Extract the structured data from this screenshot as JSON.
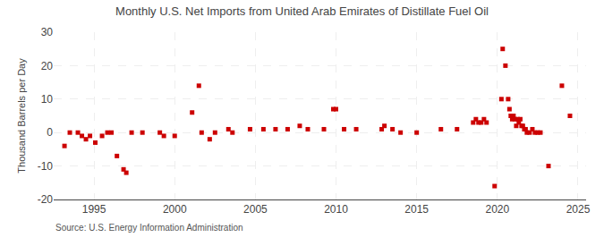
{
  "chart_data": {
    "type": "scatter",
    "title": "Monthly U.S. Net Imports from United Arab Emirates of Distillate Fuel Oil",
    "ylabel": "Thousand Barrels per Day",
    "annotations": [
      "Source: U.S. Energy Information Administration"
    ],
    "color": "#cc0000",
    "marker": "square",
    "grid": true,
    "xlim": [
      1992.5,
      2025.5
    ],
    "ylim": [
      -20,
      30
    ],
    "yticks": [
      -20,
      -10,
      0,
      10,
      20,
      30
    ],
    "xticks": [
      1995,
      2000,
      2005,
      2010,
      2015,
      2020,
      2025
    ],
    "x": [
      1993.17,
      1993.5,
      1994.0,
      1994.25,
      1994.5,
      1994.75,
      1995.08,
      1995.5,
      1995.83,
      1996.08,
      1996.42,
      1996.83,
      1997.0,
      1997.33,
      1998.0,
      1999.08,
      1999.33,
      2000.0,
      2001.08,
      2001.5,
      2001.67,
      2002.17,
      2002.5,
      2003.33,
      2003.58,
      2004.67,
      2005.5,
      2006.25,
      2007.0,
      2007.75,
      2008.25,
      2009.25,
      2009.83,
      2010.0,
      2010.5,
      2011.25,
      2012.83,
      2013.0,
      2013.5,
      2014.0,
      2015.0,
      2016.5,
      2017.5,
      2018.5,
      2018.67,
      2018.83,
      2019.0,
      2019.17,
      2019.33,
      2019.83,
      2020.25,
      2020.33,
      2020.5,
      2020.67,
      2020.75,
      2020.83,
      2020.92,
      2021.0,
      2021.08,
      2021.17,
      2021.25,
      2021.33,
      2021.42,
      2021.5,
      2021.58,
      2021.67,
      2021.75,
      2021.83,
      2022.0,
      2022.17,
      2022.33,
      2022.5,
      2022.67,
      2023.17,
      2024.0,
      2024.5
    ],
    "values": [
      -4,
      0,
      0,
      -1,
      -2,
      -1,
      -3,
      -1,
      0,
      0,
      -7,
      -11,
      -12,
      0,
      0,
      0,
      -1,
      -1,
      6,
      14,
      0,
      -2,
      0,
      1,
      0,
      1,
      1,
      1,
      1,
      2,
      1,
      1,
      7,
      7,
      1,
      1,
      1,
      2,
      1,
      0,
      0,
      1,
      1,
      3,
      4,
      3,
      3,
      4,
      3,
      -16,
      10,
      25,
      20,
      10,
      7,
      5,
      4,
      5,
      4,
      2,
      4,
      3,
      4,
      2,
      2,
      1,
      1,
      0,
      0,
      1,
      0,
      0,
      0,
      -10,
      14,
      5
    ]
  }
}
